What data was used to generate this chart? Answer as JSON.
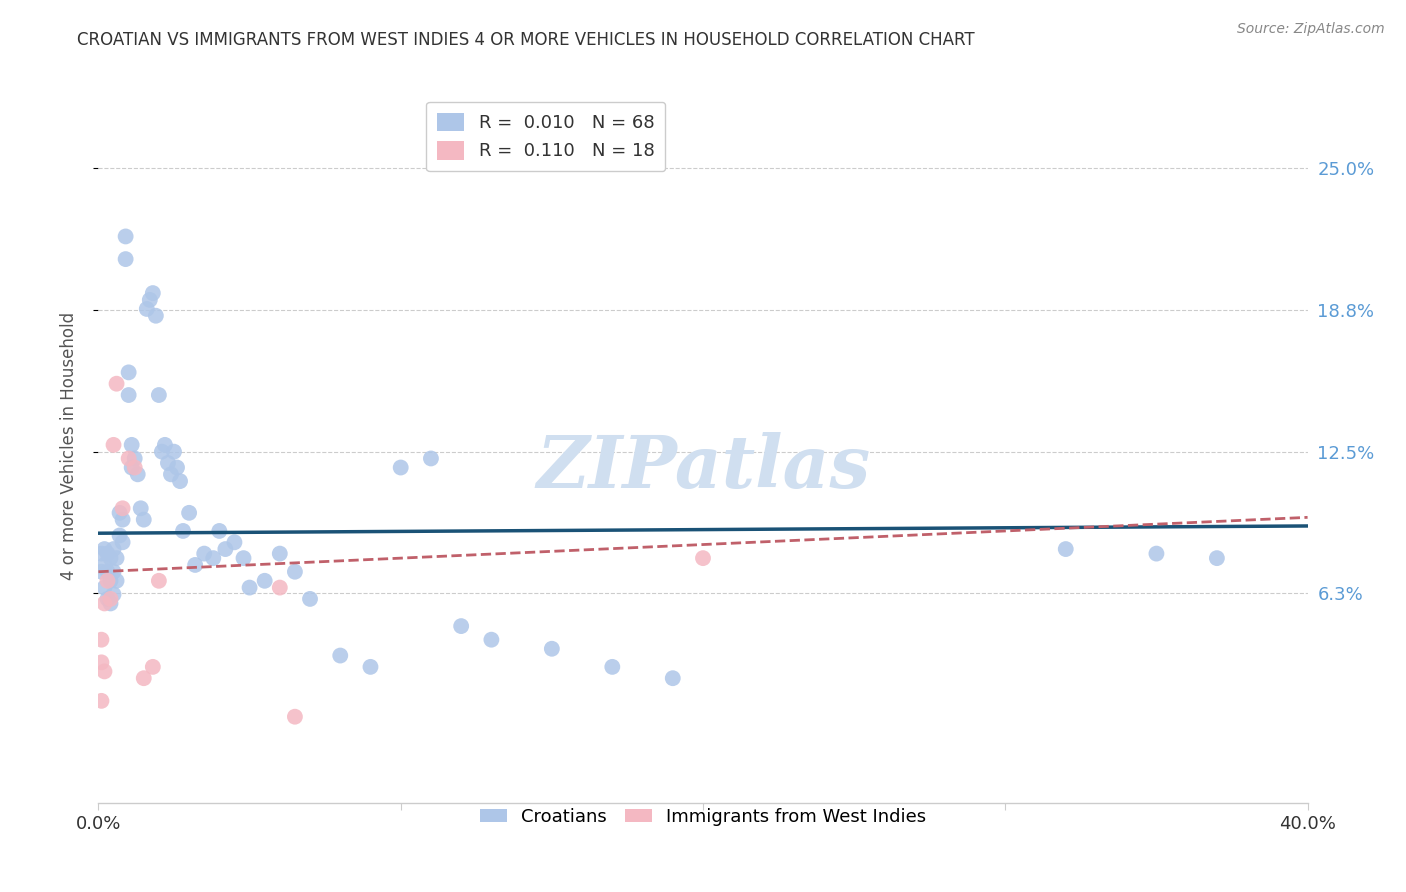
{
  "title": "CROATIAN VS IMMIGRANTS FROM WEST INDIES 4 OR MORE VEHICLES IN HOUSEHOLD CORRELATION CHART",
  "source": "Source: ZipAtlas.com",
  "ylabel": "4 or more Vehicles in Household",
  "right_ytick_labels": [
    "25.0%",
    "18.8%",
    "12.5%",
    "6.3%"
  ],
  "right_ytick_values": [
    0.25,
    0.1875,
    0.125,
    0.0625
  ],
  "xmin": 0.0,
  "xmax": 0.4,
  "ymin": -0.03,
  "ymax": 0.285,
  "blue_line_color": "#1a5276",
  "pink_line_color": "#c0606a",
  "blue_dot_color": "#aec6e8",
  "pink_dot_color": "#f4b8c2",
  "watermark_text": "ZIPatlas",
  "watermark_color": "#d0dff0",
  "background_color": "#ffffff",
  "grid_color": "#cccccc",
  "cro_x": [
    0.001,
    0.001,
    0.002,
    0.002,
    0.002,
    0.003,
    0.003,
    0.003,
    0.004,
    0.004,
    0.004,
    0.005,
    0.005,
    0.005,
    0.006,
    0.006,
    0.007,
    0.007,
    0.008,
    0.008,
    0.009,
    0.009,
    0.01,
    0.01,
    0.011,
    0.011,
    0.012,
    0.013,
    0.014,
    0.015,
    0.016,
    0.017,
    0.018,
    0.019,
    0.02,
    0.021,
    0.022,
    0.023,
    0.024,
    0.025,
    0.026,
    0.027,
    0.028,
    0.03,
    0.032,
    0.035,
    0.038,
    0.04,
    0.042,
    0.045,
    0.048,
    0.05,
    0.055,
    0.06,
    0.065,
    0.07,
    0.08,
    0.09,
    0.1,
    0.11,
    0.12,
    0.13,
    0.15,
    0.17,
    0.19,
    0.32,
    0.35,
    0.37
  ],
  "cro_y": [
    0.08,
    0.072,
    0.082,
    0.075,
    0.065,
    0.08,
    0.072,
    0.06,
    0.078,
    0.068,
    0.058,
    0.082,
    0.072,
    0.062,
    0.078,
    0.068,
    0.098,
    0.088,
    0.095,
    0.085,
    0.21,
    0.22,
    0.16,
    0.15,
    0.128,
    0.118,
    0.122,
    0.115,
    0.1,
    0.095,
    0.188,
    0.192,
    0.195,
    0.185,
    0.15,
    0.125,
    0.128,
    0.12,
    0.115,
    0.125,
    0.118,
    0.112,
    0.09,
    0.098,
    0.075,
    0.08,
    0.078,
    0.09,
    0.082,
    0.085,
    0.078,
    0.065,
    0.068,
    0.08,
    0.072,
    0.06,
    0.035,
    0.03,
    0.118,
    0.122,
    0.048,
    0.042,
    0.038,
    0.03,
    0.025,
    0.082,
    0.08,
    0.078
  ],
  "wi_x": [
    0.001,
    0.001,
    0.001,
    0.002,
    0.002,
    0.003,
    0.004,
    0.005,
    0.006,
    0.008,
    0.01,
    0.012,
    0.015,
    0.018,
    0.02,
    0.06,
    0.065,
    0.2
  ],
  "wi_y": [
    0.042,
    0.032,
    0.015,
    0.058,
    0.028,
    0.068,
    0.06,
    0.128,
    0.155,
    0.1,
    0.122,
    0.118,
    0.025,
    0.03,
    0.068,
    0.065,
    0.008,
    0.078
  ]
}
